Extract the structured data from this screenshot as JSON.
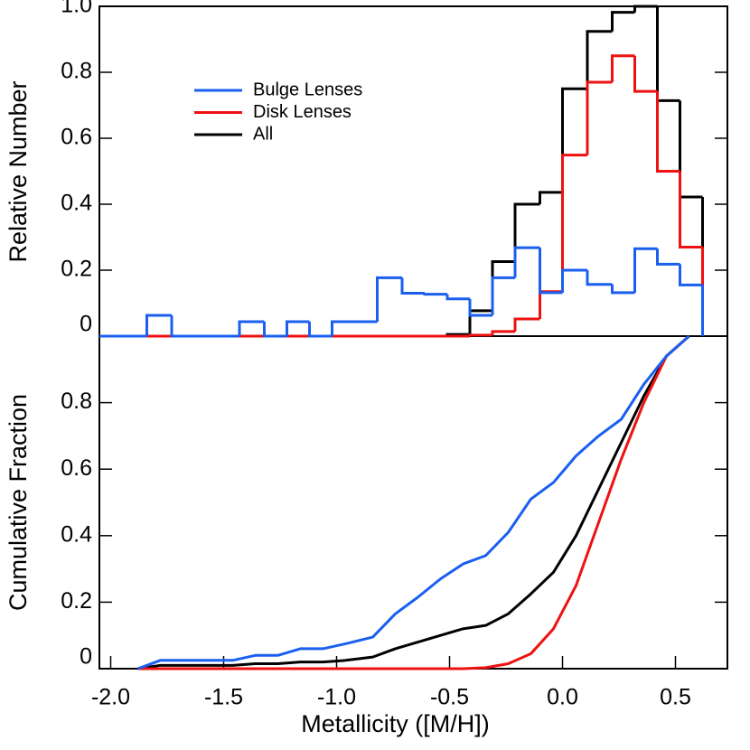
{
  "chart_data": [
    {
      "type": "histogram",
      "ylabel": "Relative Number",
      "bins": [
        -1.94,
        -1.84,
        -1.73,
        -1.63,
        -1.53,
        -1.43,
        -1.32,
        -1.22,
        -1.12,
        -1.02,
        -0.92,
        -0.82,
        -0.71,
        -0.61,
        -0.51,
        -0.41,
        -0.31,
        -0.21,
        -0.1,
        0.0,
        0.11,
        0.22,
        0.32,
        0.42,
        0.52,
        0.62
      ],
      "series": [
        {
          "name": "Bulge Lenses",
          "color": "#1a5ff0",
          "values": [
            0,
            0.063,
            0,
            0,
            0,
            0.044,
            0,
            0.044,
            0,
            0.044,
            0.044,
            0.177,
            0.13,
            0.127,
            0.113,
            0.063,
            0.177,
            0.268,
            0.132,
            0.2,
            0.157,
            0.132,
            0.265,
            0.218,
            0.155
          ]
        },
        {
          "name": "Disk Lenses",
          "color": "#ee1111",
          "values": [
            0,
            0,
            0,
            0,
            0,
            0,
            0,
            0,
            0,
            0,
            0,
            0,
            0,
            0,
            0,
            0.003,
            0.014,
            0.052,
            0.135,
            0.549,
            0.77,
            0.85,
            0.742,
            0.5,
            0.27
          ]
        },
        {
          "name": "All",
          "color": "#000000",
          "values": [
            0,
            0,
            0,
            0,
            0,
            0,
            0,
            0,
            0,
            0,
            0,
            0,
            0,
            0,
            0.005,
            0.077,
            0.226,
            0.4,
            0.436,
            0.75,
            0.924,
            0.982,
            1.0,
            0.714,
            0.422
          ]
        }
      ],
      "xlim": [
        -2.05,
        0.73
      ],
      "ylim": [
        0,
        1.0
      ],
      "yticks": [
        0,
        0.2,
        0.4,
        0.6,
        0.8,
        {
          "value": 1,
          "label": "1.0"
        }
      ],
      "legend": "upper left"
    },
    {
      "type": "line",
      "xlabel": "Metallicity ([M/H])",
      "ylabel": "Cumulative Fraction",
      "x": [
        -1.88,
        -1.78,
        -1.46,
        -1.36,
        -1.26,
        -1.16,
        -1.06,
        -0.96,
        -0.84,
        -0.74,
        -0.64,
        -0.54,
        -0.44,
        -0.34,
        -0.24,
        -0.14,
        -0.04,
        0.06,
        0.16,
        0.26,
        0.36,
        0.46,
        0.56
      ],
      "series": [
        {
          "name": "Bulge Lenses",
          "color": "#1a5ff0",
          "values": [
            0,
            0.025,
            0.025,
            0.04,
            0.04,
            0.06,
            0.06,
            0.075,
            0.095,
            0.165,
            0.215,
            0.27,
            0.315,
            0.34,
            0.41,
            0.51,
            0.56,
            0.64,
            0.7,
            0.75,
            0.855,
            0.94,
            1.0
          ]
        },
        {
          "name": "Disk Lenses",
          "color": "#ee1111",
          "values": [
            0,
            0,
            0,
            0,
            0,
            0,
            0,
            0,
            0,
            0,
            0,
            0,
            0,
            0.003,
            0.015,
            0.045,
            0.12,
            0.25,
            0.44,
            0.63,
            0.8,
            0.94,
            1.0
          ]
        },
        {
          "name": "All",
          "color": "#000000",
          "values": [
            0,
            0.01,
            0.01,
            0.015,
            0.015,
            0.02,
            0.02,
            0.025,
            0.035,
            0.06,
            0.08,
            0.1,
            0.12,
            0.13,
            0.165,
            0.225,
            0.29,
            0.4,
            0.54,
            0.68,
            0.82,
            0.94,
            1.0
          ]
        }
      ],
      "xlim": [
        -2.05,
        0.73
      ],
      "ylim": [
        0,
        1.0
      ],
      "xticks": [
        {
          "value": -2,
          "label": "-2.0"
        },
        -1.5,
        {
          "value": -1,
          "label": "-1.0"
        },
        -0.5,
        {
          "value": 0,
          "label": "0.0"
        },
        0.5
      ],
      "yticks": [
        0,
        0.2,
        0.4,
        0.6,
        0.8
      ]
    }
  ]
}
